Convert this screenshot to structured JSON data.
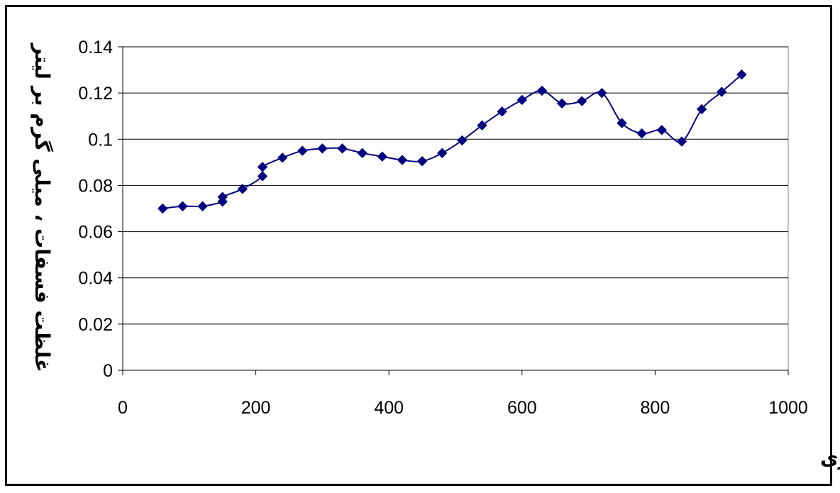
{
  "chart_data": {
    "type": "line",
    "title": "",
    "xlabel": "روز از شروع مدلسازی",
    "ylabel": "غلظت فسفات ، میلی گرم بر لیتر",
    "xlim": [
      0,
      1000
    ],
    "ylim": [
      0,
      0.14
    ],
    "x_ticks": [
      "0",
      "200",
      "400",
      "600",
      "800",
      "1000"
    ],
    "y_ticks": [
      "0",
      "0.02",
      "0.04",
      "0.06",
      "0.08",
      "0.1",
      "0.12",
      "0.14"
    ],
    "grid": "horizontal",
    "legend": "none",
    "series": [
      {
        "color": "#000080",
        "marker": "diamond",
        "smooth": true,
        "points": [
          [
            60,
            0.07
          ],
          [
            90,
            0.071
          ],
          [
            120,
            0.071
          ],
          [
            150,
            0.073
          ],
          [
            150,
            0.075
          ],
          [
            180,
            0.0785
          ],
          [
            210,
            0.084
          ],
          [
            210,
            0.088
          ],
          [
            240,
            0.092
          ],
          [
            270,
            0.095
          ],
          [
            300,
            0.096
          ],
          [
            330,
            0.096
          ],
          [
            360,
            0.094
          ],
          [
            390,
            0.0925
          ],
          [
            420,
            0.091
          ],
          [
            450,
            0.0905
          ],
          [
            480,
            0.094
          ],
          [
            510,
            0.0995
          ],
          [
            540,
            0.106
          ],
          [
            570,
            0.112
          ],
          [
            600,
            0.117
          ],
          [
            630,
            0.121
          ],
          [
            660,
            0.1155
          ],
          [
            690,
            0.1165
          ],
          [
            720,
            0.12
          ],
          [
            750,
            0.107
          ],
          [
            780,
            0.1025
          ],
          [
            810,
            0.104
          ],
          [
            840,
            0.099
          ],
          [
            870,
            0.113
          ],
          [
            900,
            0.1205
          ],
          [
            930,
            0.128
          ]
        ]
      }
    ]
  }
}
